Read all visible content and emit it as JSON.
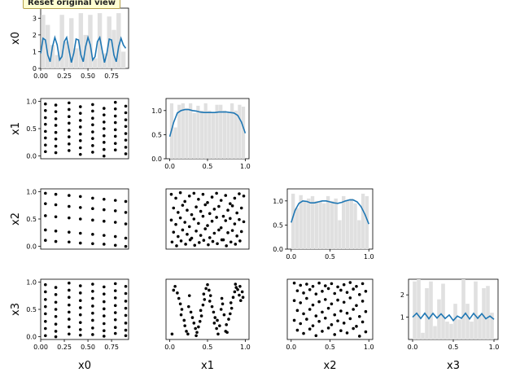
{
  "tooltip": "Reset original view",
  "chart_data": {
    "type": "scatter",
    "layout": "pairplot-lower-triangle",
    "variables": [
      "x0",
      "x1",
      "x2",
      "x3"
    ],
    "colors": {
      "points": "#000000",
      "density": "#1f77b4",
      "hist": "#e0e0e0"
    },
    "axes": [
      {
        "var": "x0",
        "range": [
          0,
          0.93
        ],
        "ticks": [
          0.0,
          0.25,
          0.5,
          0.75
        ],
        "tick_labels": [
          "0.00",
          "0.25",
          "0.50",
          "0.75"
        ]
      },
      {
        "var": "x1",
        "range": [
          -0.05,
          1.05
        ],
        "ticks": [
          0,
          0.5,
          1
        ],
        "tick_labels": [
          "0.0",
          "0.5",
          "1.0"
        ]
      },
      {
        "var": "x2",
        "range": [
          -0.05,
          1.05
        ],
        "ticks": [
          0,
          0.5,
          1
        ],
        "tick_labels": [
          "0.0",
          "0.5",
          "1.0"
        ]
      },
      {
        "var": "x3",
        "range": [
          -0.05,
          1.05
        ],
        "ticks": [
          0,
          0.5,
          1
        ],
        "tick_labels": [
          "0.0",
          "0.5",
          "1.0"
        ]
      }
    ],
    "diagonal": [
      {
        "var": "x0",
        "ylim": [
          0,
          3.6
        ],
        "yticks": [
          0,
          1,
          2,
          3
        ],
        "hist": [
          3.2,
          2.6,
          1.4,
          0.8,
          3.2,
          1.6,
          3.0,
          1.2,
          3.3,
          2.0,
          3.2,
          0.6,
          3.3,
          0.9,
          3.1,
          2.3,
          3.3,
          1.0
        ],
        "density_x": [
          0,
          0.025,
          0.05,
          0.075,
          0.1,
          0.125,
          0.15,
          0.175,
          0.2,
          0.225,
          0.25,
          0.275,
          0.3,
          0.325,
          0.35,
          0.375,
          0.4,
          0.425,
          0.45,
          0.475,
          0.5,
          0.525,
          0.55,
          0.575,
          0.6,
          0.625,
          0.65,
          0.675,
          0.7,
          0.725,
          0.75,
          0.775,
          0.8,
          0.825,
          0.85,
          0.875,
          0.9
        ],
        "density_y": [
          0.9,
          1.8,
          1.7,
          0.8,
          0.4,
          1.3,
          1.85,
          1.4,
          0.5,
          0.7,
          1.6,
          1.85,
          1.1,
          0.35,
          0.9,
          1.75,
          1.7,
          0.8,
          0.4,
          1.3,
          1.85,
          1.4,
          0.5,
          0.7,
          1.6,
          1.85,
          1.1,
          0.35,
          0.9,
          1.75,
          1.7,
          0.8,
          0.4,
          1.3,
          1.8,
          1.4,
          1.2
        ]
      },
      {
        "var": "x1",
        "ylim": [
          0,
          1.25
        ],
        "yticks": [
          0,
          0.5,
          1
        ],
        "hist": [
          1.15,
          0.65,
          1.12,
          1.15,
          1.05,
          1.15,
          0.95,
          1.1,
          1.0,
          1.15,
          1.0,
          0.95,
          1.12,
          1.12,
          1.0,
          0.95,
          1.15,
          1.0,
          1.12,
          1.08
        ],
        "density_x": [
          0,
          0.05,
          0.1,
          0.15,
          0.2,
          0.25,
          0.3,
          0.35,
          0.4,
          0.45,
          0.5,
          0.55,
          0.6,
          0.65,
          0.7,
          0.75,
          0.8,
          0.85,
          0.9,
          0.95,
          1
        ],
        "density_y": [
          0.46,
          0.75,
          0.95,
          1.0,
          1.02,
          1.02,
          1.0,
          0.99,
          0.97,
          0.96,
          0.96,
          0.96,
          0.96,
          0.97,
          0.97,
          0.97,
          0.96,
          0.95,
          0.9,
          0.76,
          0.53
        ]
      },
      {
        "var": "x2",
        "ylim": [
          0,
          1.25
        ],
        "yticks": [
          0,
          0.5,
          1
        ],
        "hist": [
          1.15,
          0.85,
          1.12,
          1.0,
          1.05,
          1.1,
          1.0,
          1.0,
          0.95,
          1.1,
          1.0,
          1.05,
          0.6,
          1.1,
          1.0,
          1.05,
          0.95,
          0.6,
          1.15,
          1.1
        ],
        "density_x": [
          0,
          0.05,
          0.1,
          0.15,
          0.2,
          0.25,
          0.3,
          0.35,
          0.4,
          0.45,
          0.5,
          0.55,
          0.6,
          0.65,
          0.7,
          0.75,
          0.8,
          0.85,
          0.9,
          0.95,
          1
        ],
        "density_y": [
          0.55,
          0.8,
          0.95,
          1.0,
          0.99,
          0.96,
          0.96,
          0.98,
          1.0,
          1.0,
          0.98,
          0.96,
          0.95,
          0.97,
          1.0,
          1.02,
          1.02,
          0.98,
          0.88,
          0.72,
          0.52
        ]
      },
      {
        "var": "x3",
        "ylim": [
          0,
          2.7
        ],
        "yticks": [
          1,
          2
        ],
        "hist": [
          2.6,
          2.7,
          0.3,
          2.3,
          2.6,
          0.6,
          1.8,
          2.5,
          0.8,
          0.7,
          1.6,
          0.9,
          2.7,
          1.6,
          0.8,
          2.6,
          1.1,
          2.3,
          2.4,
          1.2
        ],
        "density_x": [
          0,
          0.05,
          0.1,
          0.15,
          0.2,
          0.25,
          0.3,
          0.35,
          0.4,
          0.45,
          0.5,
          0.55,
          0.6,
          0.65,
          0.7,
          0.75,
          0.8,
          0.85,
          0.9,
          0.95,
          1
        ],
        "density_y": [
          1.0,
          1.18,
          0.94,
          1.18,
          0.93,
          1.17,
          0.96,
          1.15,
          0.94,
          1.1,
          0.85,
          1.05,
          0.95,
          1.18,
          0.92,
          1.17,
          0.95,
          1.16,
          0.93,
          1.05,
          0.9
        ]
      }
    ],
    "scatter": {
      "x1_vs_x0": {
        "x": [
          0.05,
          0.05,
          0.05,
          0.05,
          0.05,
          0.05,
          0.05,
          0.05,
          0.16,
          0.16,
          0.16,
          0.16,
          0.16,
          0.16,
          0.16,
          0.16,
          0.3,
          0.3,
          0.3,
          0.3,
          0.3,
          0.3,
          0.3,
          0.3,
          0.42,
          0.42,
          0.42,
          0.42,
          0.42,
          0.42,
          0.42,
          0.42,
          0.55,
          0.55,
          0.55,
          0.55,
          0.55,
          0.55,
          0.55,
          0.55,
          0.67,
          0.67,
          0.67,
          0.67,
          0.67,
          0.67,
          0.67,
          0.67,
          0.79,
          0.79,
          0.79,
          0.79,
          0.79,
          0.79,
          0.79,
          0.79,
          0.9,
          0.9,
          0.9,
          0.9,
          0.9,
          0.9,
          0.9,
          0.9
        ],
        "y": [
          0.08,
          0.2,
          0.33,
          0.45,
          0.58,
          0.7,
          0.83,
          0.95,
          0.06,
          0.18,
          0.31,
          0.43,
          0.56,
          0.68,
          0.81,
          0.93,
          0.1,
          0.22,
          0.35,
          0.47,
          0.6,
          0.72,
          0.85,
          0.97,
          0.03,
          0.15,
          0.28,
          0.4,
          0.53,
          0.65,
          0.78,
          0.9,
          0.07,
          0.19,
          0.32,
          0.44,
          0.57,
          0.69,
          0.82,
          0.94,
          0.0,
          0.12,
          0.25,
          0.37,
          0.5,
          0.62,
          0.75,
          0.87,
          0.11,
          0.23,
          0.36,
          0.48,
          0.61,
          0.73,
          0.86,
          0.98,
          0.04,
          0.16,
          0.29,
          0.41,
          0.54,
          0.66,
          0.79,
          0.91
        ]
      },
      "x2_vs_x0": {
        "x": [
          0.05,
          0.16,
          0.3,
          0.42,
          0.55,
          0.67,
          0.79,
          0.9,
          0.05,
          0.16,
          0.3,
          0.42,
          0.55,
          0.67,
          0.79,
          0.9,
          0.05,
          0.16,
          0.3,
          0.42,
          0.55,
          0.67,
          0.79,
          0.9,
          0.05,
          0.16,
          0.3,
          0.42,
          0.55,
          0.67,
          0.79,
          0.9,
          0.05,
          0.16,
          0.3,
          0.42,
          0.55,
          0.67,
          0.79,
          0.9
        ],
        "y": [
          0.97,
          0.95,
          0.93,
          0.91,
          0.88,
          0.86,
          0.84,
          0.82,
          0.78,
          0.76,
          0.73,
          0.71,
          0.69,
          0.67,
          0.65,
          0.62,
          0.56,
          0.54,
          0.52,
          0.5,
          0.48,
          0.46,
          0.44,
          0.41,
          0.3,
          0.28,
          0.26,
          0.24,
          0.22,
          0.2,
          0.18,
          0.15,
          0.11,
          0.09,
          0.08,
          0.06,
          0.05,
          0.04,
          0.02,
          0.0
        ]
      },
      "x3_vs_x0": {
        "x": [
          0.05,
          0.05,
          0.05,
          0.05,
          0.05,
          0.05,
          0.05,
          0.05,
          0.16,
          0.16,
          0.16,
          0.16,
          0.16,
          0.16,
          0.16,
          0.16,
          0.3,
          0.3,
          0.3,
          0.3,
          0.3,
          0.3,
          0.3,
          0.3,
          0.42,
          0.42,
          0.42,
          0.42,
          0.42,
          0.42,
          0.42,
          0.42,
          0.55,
          0.55,
          0.55,
          0.55,
          0.55,
          0.55,
          0.55,
          0.55,
          0.67,
          0.67,
          0.67,
          0.67,
          0.67,
          0.67,
          0.67,
          0.67,
          0.79,
          0.79,
          0.79,
          0.79,
          0.79,
          0.79,
          0.79,
          0.79,
          0.9,
          0.9,
          0.9,
          0.9,
          0.9,
          0.9,
          0.9,
          0.9
        ],
        "y": [
          0.95,
          0.82,
          0.68,
          0.55,
          0.42,
          0.28,
          0.15,
          0.02,
          0.9,
          0.77,
          0.63,
          0.5,
          0.37,
          0.23,
          0.1,
          0.0,
          0.98,
          0.85,
          0.72,
          0.58,
          0.45,
          0.32,
          0.18,
          0.05,
          0.93,
          0.8,
          0.66,
          0.53,
          0.4,
          0.26,
          0.13,
          0.03,
          0.96,
          0.83,
          0.7,
          0.56,
          0.43,
          0.3,
          0.16,
          0.04,
          0.91,
          0.78,
          0.64,
          0.51,
          0.38,
          0.24,
          0.11,
          0.01,
          0.97,
          0.84,
          0.71,
          0.57,
          0.44,
          0.31,
          0.17,
          0.06,
          0.92,
          0.79,
          0.65,
          0.52,
          0.39,
          0.25,
          0.12,
          0.02
        ]
      },
      "x2_vs_x1": {
        "x": [
          0.02,
          0.08,
          0.14,
          0.2,
          0.26,
          0.32,
          0.38,
          0.44,
          0.5,
          0.56,
          0.62,
          0.68,
          0.74,
          0.8,
          0.86,
          0.92,
          0.98,
          0.05,
          0.11,
          0.17,
          0.23,
          0.29,
          0.35,
          0.41,
          0.47,
          0.53,
          0.59,
          0.65,
          0.71,
          0.77,
          0.83,
          0.89,
          0.95,
          0.02,
          0.08,
          0.14,
          0.2,
          0.26,
          0.32,
          0.38,
          0.44,
          0.5,
          0.56,
          0.62,
          0.68,
          0.74,
          0.8,
          0.86,
          0.92,
          0.98,
          0.05,
          0.11,
          0.17,
          0.23,
          0.29,
          0.35,
          0.41,
          0.47,
          0.53,
          0.59,
          0.65,
          0.71,
          0.77,
          0.83,
          0.89,
          0.95,
          0.03,
          0.09,
          0.15,
          0.21,
          0.27,
          0.33,
          0.39,
          0.45,
          0.51,
          0.57,
          0.63,
          0.69,
          0.75,
          0.81,
          0.87,
          0.93
        ],
        "y": [
          0.95,
          0.88,
          0.98,
          0.82,
          0.92,
          0.97,
          0.86,
          0.95,
          0.8,
          0.9,
          0.97,
          0.84,
          0.93,
          0.78,
          0.88,
          0.96,
          0.92,
          0.7,
          0.62,
          0.75,
          0.66,
          0.58,
          0.72,
          0.64,
          0.76,
          0.6,
          0.68,
          0.73,
          0.55,
          0.66,
          0.74,
          0.61,
          0.7,
          0.48,
          0.4,
          0.52,
          0.44,
          0.36,
          0.5,
          0.42,
          0.55,
          0.38,
          0.46,
          0.53,
          0.34,
          0.47,
          0.51,
          0.41,
          0.49,
          0.45,
          0.26,
          0.18,
          0.3,
          0.22,
          0.15,
          0.28,
          0.2,
          0.32,
          0.16,
          0.24,
          0.3,
          0.12,
          0.25,
          0.29,
          0.19,
          0.27,
          0.08,
          0.01,
          0.1,
          0.04,
          0.12,
          0.02,
          0.07,
          0.11,
          0.03,
          0.09,
          0.05,
          0.12,
          0.01,
          0.08,
          0.04,
          0.1
        ]
      },
      "x3_vs_x1": {
        "x": [
          0.03,
          0.07,
          0.05,
          0.1,
          0.12,
          0.14,
          0.16,
          0.15,
          0.19,
          0.2,
          0.22,
          0.24,
          0.26,
          0.25,
          0.28,
          0.3,
          0.32,
          0.34,
          0.36,
          0.35,
          0.38,
          0.4,
          0.42,
          0.41,
          0.44,
          0.46,
          0.45,
          0.48,
          0.5,
          0.52,
          0.54,
          0.53,
          0.56,
          0.58,
          0.6,
          0.59,
          0.62,
          0.64,
          0.63,
          0.66,
          0.68,
          0.7,
          0.69,
          0.72,
          0.74,
          0.76,
          0.75,
          0.78,
          0.8,
          0.82,
          0.81,
          0.84,
          0.86,
          0.88,
          0.87,
          0.9,
          0.92,
          0.94,
          0.93,
          0.96,
          0.97
        ],
        "y": [
          0.05,
          0.92,
          0.85,
          0.8,
          0.7,
          0.6,
          0.5,
          0.4,
          0.3,
          0.2,
          0.1,
          0.05,
          0.75,
          0.55,
          0.45,
          0.35,
          0.25,
          0.15,
          0.08,
          0.02,
          0.18,
          0.28,
          0.38,
          0.48,
          0.58,
          0.68,
          0.78,
          0.88,
          0.95,
          0.85,
          0.75,
          0.65,
          0.55,
          0.45,
          0.35,
          0.25,
          0.15,
          0.05,
          0.3,
          0.2,
          0.5,
          0.6,
          0.7,
          0.4,
          0.1,
          0.08,
          0.22,
          0.32,
          0.42,
          0.52,
          0.62,
          0.72,
          0.82,
          0.9,
          0.96,
          0.86,
          0.76,
          0.66,
          0.92,
          0.82,
          0.72
        ]
      },
      "x3_vs_x2": {
        "x": [
          0.04,
          0.12,
          0.2,
          0.28,
          0.36,
          0.44,
          0.52,
          0.6,
          0.68,
          0.76,
          0.84,
          0.92,
          0.08,
          0.16,
          0.24,
          0.32,
          0.4,
          0.48,
          0.56,
          0.64,
          0.72,
          0.8,
          0.88,
          0.96,
          0.04,
          0.12,
          0.2,
          0.28,
          0.36,
          0.44,
          0.52,
          0.6,
          0.68,
          0.76,
          0.84,
          0.92,
          0.08,
          0.16,
          0.24,
          0.32,
          0.4,
          0.48,
          0.56,
          0.64,
          0.72,
          0.8,
          0.88,
          0.96,
          0.04,
          0.12,
          0.2,
          0.28,
          0.36,
          0.44,
          0.52,
          0.6,
          0.68,
          0.76,
          0.84,
          0.92,
          0.08,
          0.16,
          0.24,
          0.32,
          0.4,
          0.48,
          0.56,
          0.64,
          0.72,
          0.8,
          0.88,
          0.96
        ],
        "y": [
          0.98,
          0.94,
          0.96,
          0.92,
          0.98,
          0.93,
          0.97,
          0.91,
          0.95,
          0.99,
          0.92,
          0.97,
          0.84,
          0.8,
          0.86,
          0.78,
          0.83,
          0.88,
          0.79,
          0.85,
          0.81,
          0.87,
          0.77,
          0.83,
          0.66,
          0.62,
          0.7,
          0.58,
          0.64,
          0.68,
          0.6,
          0.67,
          0.63,
          0.71,
          0.57,
          0.65,
          0.48,
          0.42,
          0.5,
          0.38,
          0.45,
          0.52,
          0.4,
          0.47,
          0.43,
          0.5,
          0.37,
          0.46,
          0.3,
          0.24,
          0.32,
          0.2,
          0.28,
          0.34,
          0.22,
          0.29,
          0.25,
          0.33,
          0.19,
          0.27,
          0.12,
          0.06,
          0.14,
          0.02,
          0.1,
          0.16,
          0.04,
          0.11,
          0.07,
          0.15,
          0.01,
          0.09
        ]
      }
    }
  }
}
